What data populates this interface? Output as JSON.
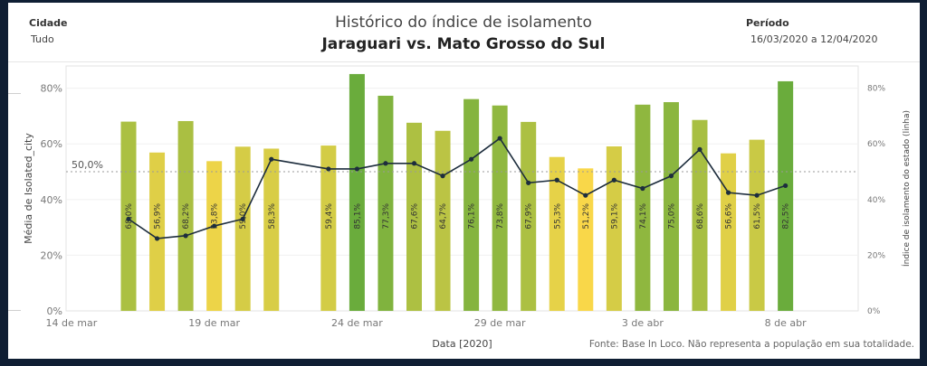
{
  "filters": {
    "city_label": "Cidade",
    "city_value": "Tudo",
    "period_label": "Período",
    "period_value": "16/03/2020 a 12/04/2020"
  },
  "title": "Histórico do índice de isolamento",
  "subtitle": "Jaraguari vs. Mato Grosso do Sul",
  "source_note": "Fonte: Base In Loco. Não representa a população em sua totalidade.",
  "chart_data": {
    "type": "bar",
    "xlabel": "Data [2020]",
    "ylabel": "Média de Isolated_city",
    "y2label": "Índice de isolamento do estado (linha)",
    "ylim": [
      0,
      88
    ],
    "y_ticks": [
      "0%",
      "20%",
      "40%",
      "60%",
      "80%"
    ],
    "y2_ticks": [
      "0%",
      "20%",
      "40%",
      "60%",
      "80%"
    ],
    "x_tick_labels": [
      "14 de mar",
      "19 de mar",
      "24 de mar",
      "29 de mar",
      "3 de abr",
      "8 de abr"
    ],
    "reference_line": {
      "value": 50,
      "label": "50,0%"
    },
    "color_scale": {
      "low": "#ffd94a",
      "high": "#6aac3c"
    },
    "bars": [
      {
        "date": "2020-03-16",
        "value": 68.0,
        "label": "68,0%"
      },
      {
        "date": "2020-03-17",
        "value": 56.9,
        "label": "56,9%"
      },
      {
        "date": "2020-03-18",
        "value": 68.2,
        "label": "68,2%"
      },
      {
        "date": "2020-03-19",
        "value": 53.8,
        "label": "53,8%"
      },
      {
        "date": "2020-03-20",
        "value": 59.0,
        "label": "59,0%"
      },
      {
        "date": "2020-03-21",
        "value": 58.3,
        "label": "58,3%"
      },
      {
        "date": "2020-03-23",
        "value": 59.4,
        "label": "59,4%"
      },
      {
        "date": "2020-03-24",
        "value": 85.1,
        "label": "85,1%"
      },
      {
        "date": "2020-03-25",
        "value": 77.3,
        "label": "77,3%"
      },
      {
        "date": "2020-03-26",
        "value": 67.6,
        "label": "67,6%"
      },
      {
        "date": "2020-03-27",
        "value": 64.7,
        "label": "64,7%"
      },
      {
        "date": "2020-03-28",
        "value": 76.1,
        "label": "76,1%"
      },
      {
        "date": "2020-03-29",
        "value": 73.8,
        "label": "73,8%"
      },
      {
        "date": "2020-03-30",
        "value": 67.9,
        "label": "67,9%"
      },
      {
        "date": "2020-03-31",
        "value": 55.3,
        "label": "55,3%"
      },
      {
        "date": "2020-04-01",
        "value": 51.2,
        "label": "51,2%"
      },
      {
        "date": "2020-04-02",
        "value": 59.1,
        "label": "59,1%"
      },
      {
        "date": "2020-04-03",
        "value": 74.1,
        "label": "74,1%"
      },
      {
        "date": "2020-04-04",
        "value": 75.0,
        "label": "75,0%"
      },
      {
        "date": "2020-04-05",
        "value": 68.6,
        "label": "68,6%"
      },
      {
        "date": "2020-04-06",
        "value": 56.6,
        "label": "56,6%"
      },
      {
        "date": "2020-04-07",
        "value": 61.5,
        "label": "61,5%"
      },
      {
        "date": "2020-04-08",
        "value": 82.5,
        "label": "82,5%"
      }
    ],
    "state_line": [
      {
        "date": "2020-03-16",
        "value": 33.0
      },
      {
        "date": "2020-03-17",
        "value": 26.0
      },
      {
        "date": "2020-03-18",
        "value": 27.0
      },
      {
        "date": "2020-03-19",
        "value": 30.5
      },
      {
        "date": "2020-03-20",
        "value": 33.0
      },
      {
        "date": "2020-03-21",
        "value": 54.5
      },
      {
        "date": "2020-03-23",
        "value": 51.0
      },
      {
        "date": "2020-03-24",
        "value": 51.0
      },
      {
        "date": "2020-03-25",
        "value": 53.0
      },
      {
        "date": "2020-03-26",
        "value": 53.0
      },
      {
        "date": "2020-03-27",
        "value": 48.5
      },
      {
        "date": "2020-03-28",
        "value": 54.5
      },
      {
        "date": "2020-03-29",
        "value": 62.0
      },
      {
        "date": "2020-03-30",
        "value": 46.0
      },
      {
        "date": "2020-03-31",
        "value": 47.0
      },
      {
        "date": "2020-04-01",
        "value": 41.5
      },
      {
        "date": "2020-04-02",
        "value": 47.0
      },
      {
        "date": "2020-04-03",
        "value": 44.0
      },
      {
        "date": "2020-04-04",
        "value": 48.5
      },
      {
        "date": "2020-04-05",
        "value": 58.0
      },
      {
        "date": "2020-04-06",
        "value": 42.5
      },
      {
        "date": "2020-04-07",
        "value": 41.5
      },
      {
        "date": "2020-04-08",
        "value": 45.0
      }
    ]
  }
}
